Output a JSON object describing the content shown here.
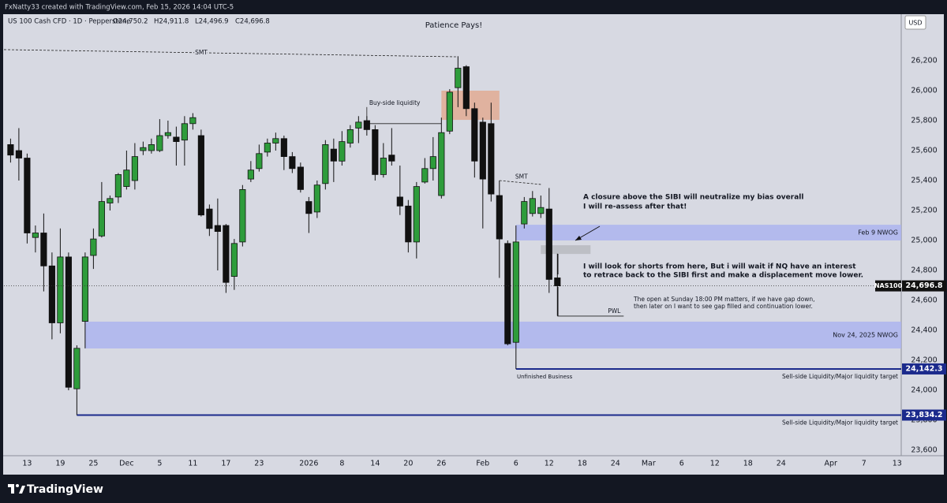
{
  "header": {
    "credit": "FxNatty33 created with TradingView.com, Feb 15, 2026 14:04 UTC-5",
    "symbol": "US 100 Cash CFD · 1D · Pepperstone",
    "ohlc": [
      "O24,750.2",
      "H24,911.8",
      "L24,496.9",
      "C24,696.8"
    ],
    "currency": "USD"
  },
  "footer": {
    "brand": "TradingView"
  },
  "chart_data": {
    "type": "candlestick",
    "title": "Patience Pays!",
    "up_color": "#2e9c3b",
    "down_color": "#111111",
    "open": [
      25640,
      25600,
      25550,
      25020,
      25050,
      24830,
      24450,
      24890,
      24010,
      24460,
      24900,
      25030,
      25250,
      25290,
      25360,
      25400,
      25600,
      25600,
      25600,
      25700,
      25690,
      25670,
      25780,
      25700,
      25210,
      25100,
      25100,
      24760,
      24990,
      25410,
      25480,
      25590,
      25650,
      25680,
      25560,
      25490,
      25260,
      25190,
      25380,
      25610,
      25530,
      25650,
      25750,
      25800,
      25740,
      25440,
      25570,
      25290,
      25230,
      24990,
      25390,
      25480,
      25300,
      25730,
      26020,
      26160,
      25880,
      25790,
      25780,
      25300,
      24980,
      24320,
      25110,
      25180,
      25180,
      25210,
      24750.2
    ],
    "high": [
      25680,
      25750,
      25580,
      25100,
      25180,
      24920,
      25080,
      24920,
      24300,
      24920,
      25080,
      25390,
      25300,
      25450,
      25600,
      25650,
      25660,
      25680,
      25810,
      25800,
      25760,
      25830,
      25850,
      25740,
      25240,
      25280,
      25110,
      25010,
      25370,
      25530,
      25640,
      25680,
      25720,
      25700,
      25590,
      25520,
      25290,
      25400,
      25670,
      25680,
      25730,
      25770,
      25830,
      25830,
      25770,
      25650,
      25750,
      25500,
      25270,
      25390,
      25550,
      25690,
      25820,
      26010,
      26230,
      26170,
      25920,
      25820,
      25920,
      25400,
      25000,
      25100,
      25290,
      25330,
      25300,
      25350,
      24911.8
    ],
    "low": [
      25520,
      25400,
      24980,
      24920,
      24660,
      24340,
      24380,
      24000,
      23834.2,
      24280,
      24810,
      25020,
      25200,
      25250,
      25340,
      25340,
      25570,
      25580,
      25590,
      25680,
      25500,
      25500,
      25740,
      25160,
      25030,
      24800,
      24650,
      24670,
      24960,
      25390,
      25460,
      25560,
      25600,
      25470,
      25450,
      25320,
      25050,
      25150,
      25340,
      25390,
      25500,
      25620,
      25650,
      25700,
      25400,
      25420,
      25500,
      25170,
      24920,
      24880,
      25380,
      25400,
      25280,
      25710,
      25890,
      25830,
      25420,
      25080,
      25260,
      24750,
      24300,
      24142.3,
      25080,
      25160,
      25150,
      24650,
      24496.9
    ],
    "close": [
      25570,
      25550,
      25050,
      25050,
      24830,
      24450,
      24890,
      24020,
      24280,
      24890,
      25010,
      25260,
      25280,
      25440,
      25470,
      25560,
      25620,
      25640,
      25700,
      25720,
      25660,
      25780,
      25820,
      25170,
      25080,
      25060,
      24720,
      24980,
      25340,
      25470,
      25580,
      25650,
      25680,
      25560,
      25480,
      25340,
      25180,
      25370,
      25640,
      25530,
      25660,
      25740,
      25790,
      25740,
      25440,
      25550,
      25530,
      25230,
      24990,
      25360,
      25480,
      25560,
      25720,
      25990,
      26150,
      25880,
      25530,
      25410,
      25310,
      25010,
      24310,
      24990,
      25260,
      25280,
      25220,
      24740,
      24696.8
    ],
    "xlim": [
      -0.8,
      107.5
    ],
    "xticks": [
      {
        "value": 2,
        "label": "13"
      },
      {
        "value": 6,
        "label": "19"
      },
      {
        "value": 10,
        "label": "25"
      },
      {
        "value": 14,
        "label": "Dec"
      },
      {
        "value": 18,
        "label": "5"
      },
      {
        "value": 22,
        "label": "11"
      },
      {
        "value": 26,
        "label": "17"
      },
      {
        "value": 30,
        "label": "23"
      },
      {
        "value": 36,
        "label": "2026"
      },
      {
        "value": 40,
        "label": "8"
      },
      {
        "value": 44,
        "label": "14"
      },
      {
        "value": 48,
        "label": "20"
      },
      {
        "value": 52,
        "label": "26"
      },
      {
        "value": 57,
        "label": "Feb"
      },
      {
        "value": 61,
        "label": "6"
      },
      {
        "value": 65,
        "label": "12"
      },
      {
        "value": 69,
        "label": "18"
      },
      {
        "value": 73,
        "label": "24"
      },
      {
        "value": 77,
        "label": "Mar"
      },
      {
        "value": 81,
        "label": "6"
      },
      {
        "value": 85,
        "label": "12"
      },
      {
        "value": 89,
        "label": "18"
      },
      {
        "value": 93,
        "label": "24"
      },
      {
        "value": 99,
        "label": "Apr"
      },
      {
        "value": 103,
        "label": "7"
      },
      {
        "value": 107,
        "label": "13"
      }
    ],
    "ylim": [
      23457.9,
      26500
    ],
    "yticks": [
      {
        "value": 26200,
        "label": "26,200"
      },
      {
        "value": 26000,
        "label": "26,000"
      },
      {
        "value": 25800,
        "label": "25,800"
      },
      {
        "value": 25600,
        "label": "25,600"
      },
      {
        "value": 25400,
        "label": "25,400"
      },
      {
        "value": 25200,
        "label": "25,200"
      },
      {
        "value": 25000,
        "label": "25,000"
      },
      {
        "value": 24800,
        "label": "24,800"
      },
      {
        "value": 24600,
        "label": "24,600"
      },
      {
        "value": 24400,
        "label": "24,400"
      },
      {
        "value": 24200,
        "label": "24,200"
      },
      {
        "value": 24000,
        "label": "24,000"
      },
      {
        "value": 23800,
        "label": "23,800"
      },
      {
        "value": 23600,
        "label": "23,600"
      }
    ],
    "grid": false,
    "zones": [
      {
        "label": "Feb 9 NWOG",
        "low": 25000,
        "high": 25105,
        "from": 61,
        "color": "#aab1f0"
      },
      {
        "label": "Nov 24, 2025 NWOG",
        "low": 24279,
        "high": 24458,
        "from": 9,
        "color": "#aab1f0"
      }
    ],
    "boxes": [
      {
        "low": 25805,
        "high": 26000,
        "from": 52,
        "to": 59,
        "color": "#e2aa93"
      },
      {
        "low": 24910,
        "high": 24968,
        "from": 64,
        "to": 70,
        "color": "#b9babf"
      }
    ],
    "levels": [
      {
        "label": "Sell-side Liquidity/Major liquidity target",
        "value": 24142.3,
        "value_label": "24,142.3",
        "from": 61,
        "color": "#1b2a8c"
      },
      {
        "label": "Sell-side Liquidity/Major liquidity target",
        "value": 23834.2,
        "value_label": "23,834.2",
        "from": 8,
        "color": "#1b2a8c"
      }
    ],
    "lines": [
      {
        "label": "SMT",
        "from": [
          -0.8,
          26274
        ],
        "to": [
          54,
          26226
        ],
        "style": "dashed"
      },
      {
        "label": "SMT",
        "from": [
          59,
          25400
        ],
        "to": [
          64,
          25374
        ],
        "style": "dashed"
      },
      {
        "label": "Buy-side liquidity",
        "from": [
          43,
          25780
        ],
        "to": [
          52,
          25780
        ],
        "style": "solid"
      },
      {
        "label": "PWL",
        "from": [
          66,
          24495
        ],
        "to": [
          74,
          24495
        ],
        "style": "solid"
      }
    ],
    "last_price": {
      "name": "NAS100",
      "value": 24696.8,
      "value_label": "24,696.8"
    },
    "notes": [
      {
        "lines": [
          "A closure above the SIBI will neutralize my bias overall",
          "I will re-assess after that!"
        ]
      },
      {
        "lines": [
          "I will look for shorts from here, But i will wait if NQ have an interest",
          "to retrace back to the SIBI first and make a displacement move lower."
        ]
      },
      {
        "lines": [
          "The open at Sunday 18:00 PM matters, if we have gap down,",
          "then later on I want to see gap filled and continuation lower."
        ]
      },
      {
        "lines": [
          "Unfinished Business"
        ]
      }
    ]
  }
}
